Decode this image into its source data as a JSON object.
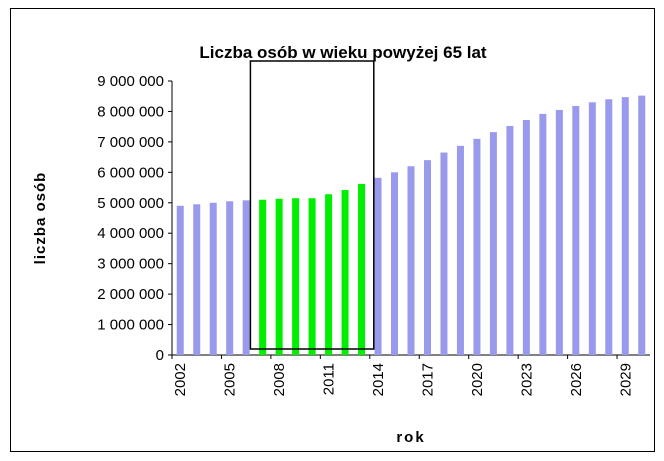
{
  "chart_data": {
    "type": "bar",
    "title": "Liczba osób w wieku powyżej 65 lat",
    "xlabel": "rok",
    "ylabel": "liczba osób",
    "categories": [
      "2002",
      null,
      null,
      "2005",
      null,
      null,
      "2008",
      null,
      null,
      "2011",
      null,
      null,
      "2014",
      null,
      null,
      "2017",
      null,
      null,
      "2020",
      null,
      null,
      "2023",
      null,
      null,
      "2026",
      null,
      null,
      "2029",
      null
    ],
    "values": [
      4900000,
      4950000,
      5000000,
      5050000,
      5080000,
      5100000,
      5130000,
      5150000,
      5150000,
      5280000,
      5420000,
      5620000,
      5820000,
      6000000,
      6200000,
      6400000,
      6650000,
      6870000,
      7100000,
      7320000,
      7520000,
      7720000,
      7920000,
      8050000,
      8180000,
      8300000,
      8400000,
      8470000,
      8520000
    ],
    "colors": [
      "#9999ee",
      "#9999ee",
      "#9999ee",
      "#9999ee",
      "#9999ee",
      "#00ee00",
      "#00ee00",
      "#00ee00",
      "#00ee00",
      "#00ee00",
      "#00ee00",
      "#00ee00",
      "#9999ee",
      "#9999ee",
      "#9999ee",
      "#9999ee",
      "#9999ee",
      "#9999ee",
      "#9999ee",
      "#9999ee",
      "#9999ee",
      "#9999ee",
      "#9999ee",
      "#9999ee",
      "#9999ee",
      "#9999ee",
      "#9999ee",
      "#9999ee",
      "#9999ee"
    ],
    "ylim": [
      0,
      9000000
    ],
    "yticks": [
      0,
      {
        "value": 1000000,
        "label": "1 000 000"
      },
      {
        "value": 2000000,
        "label": "2 000 000"
      },
      {
        "value": 3000000,
        "label": "3 000 000"
      },
      {
        "value": 4000000,
        "label": "4 000 000"
      },
      {
        "value": 5000000,
        "label": "5 000 000"
      },
      {
        "value": 6000000,
        "label": "6 000 000"
      },
      {
        "value": 7000000,
        "label": "7 000 000"
      },
      {
        "value": 8000000,
        "label": "8 000 000"
      },
      {
        "value": 9000000,
        "label": "9 000 000"
      }
    ],
    "grid": false
  }
}
